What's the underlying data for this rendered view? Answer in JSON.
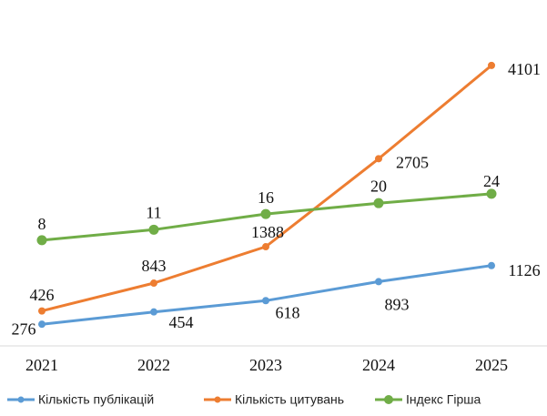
{
  "chart_data": {
    "type": "line",
    "title": "",
    "xlabel": "",
    "ylabel": "",
    "categories": [
      "2021",
      "2022",
      "2023",
      "2024",
      "2025"
    ],
    "series": [
      {
        "name": "Кількість публікацій",
        "color": "#5b9bd5",
        "values": [
          276,
          454,
          618,
          893,
          1126
        ],
        "marker": "small"
      },
      {
        "name": "Кількість цитувань",
        "color": "#ed7d31",
        "values": [
          426,
          843,
          1388,
          2705,
          4101
        ],
        "marker": "small"
      },
      {
        "name": "Індекс Гірша",
        "color": "#70ad47",
        "values": [
          8,
          11,
          16,
          20,
          24
        ],
        "marker": "large"
      }
    ],
    "grid": false,
    "legend_position": "bottom"
  }
}
